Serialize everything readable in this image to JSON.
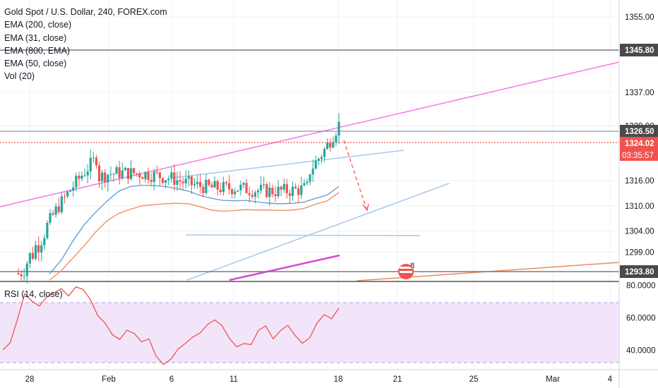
{
  "header": {
    "title": "Gold Spot / U.S. Dollar, 240, FOREX.com",
    "indicators": [
      "EMA (200, close)",
      "EMA (31, close)",
      "EMA (800, EMA)",
      "EMA (50, close)",
      "Vol (20)"
    ]
  },
  "rsi": {
    "label": "RSI (14, close)"
  },
  "badges": {
    "resistance": "1345.80",
    "top": "1326.50",
    "current": "1324.02",
    "countdown": "03:35:57",
    "support": "1293.80"
  },
  "marker": {
    "text": "8"
  },
  "colors": {
    "up": "#26a69a",
    "down": "#ef5350",
    "ema_fast": "#5b9cd6",
    "ema_slow": "#ef8a5a",
    "channel_pink": "#f279e8",
    "light_blue": "#a9c8e8",
    "rsi_fill": "#f3e5f9",
    "rsi_line": "#ef5350",
    "badge": "#4a4a4a",
    "current_badge": "#ef5350"
  },
  "chart_data": [
    {
      "type": "candlestick",
      "title": "Gold Spot / U.S. Dollar, 240, FOREX.com",
      "x_ticks": [
        "28",
        "Feb",
        "6",
        "11",
        "18",
        "21",
        "25",
        "Mar",
        "4"
      ],
      "y_ticks": [
        1355.0,
        1337.0,
        1329.0,
        1316.0,
        1310.0,
        1304.0,
        1299.0
      ],
      "price_levels": [
        1345.8,
        1326.5,
        1324.02,
        1293.8
      ],
      "ylim": [
        1292,
        1359
      ],
      "series": [
        {
          "name": "EMA (31, close)",
          "values": [
            1293.8,
            1297.0,
            1301.5,
            1305.5,
            1308.5,
            1311.2,
            1313.5,
            1314.6,
            1314.9,
            1314.8,
            1314.6,
            1314.1,
            1313.5,
            1312.5,
            1311.8,
            1311.3,
            1311.2,
            1311.3,
            1310.9,
            1310.6,
            1310.5,
            1310.6,
            1310.9,
            1311.8,
            1312.6,
            1314.6
          ]
        },
        {
          "name": "EMA (50, close)",
          "values": [
            1292.3,
            1294.5,
            1297.5,
            1300.5,
            1303.8,
            1306.5,
            1308.2,
            1309.2,
            1310.0,
            1310.3,
            1310.5,
            1310.6,
            1310.5,
            1309.8,
            1309.0,
            1308.7,
            1308.9,
            1309.1,
            1309.0,
            1309.0,
            1308.9,
            1309.0,
            1309.4,
            1310.4,
            1311.2,
            1313.2
          ]
        }
      ]
    },
    {
      "type": "line",
      "title": "RSI (14, close)",
      "y_ticks": [
        80.0,
        60.0,
        40.0
      ],
      "ylim": [
        28,
        82
      ],
      "series": [
        {
          "name": "RSI (14, close)",
          "values": [
            40.2,
            44.5,
            59.0,
            74.8,
            70.2,
            67.3,
            72.8,
            75.4,
            78.0,
            73.5,
            79.1,
            77.5,
            71.2,
            61.3,
            56.8,
            49.5,
            46.7,
            52.4,
            50.3,
            45.2,
            47.0,
            36.1,
            31.2,
            34.5,
            40.8,
            44.3,
            48.1,
            50.6,
            55.8,
            58.7,
            55.2,
            47.4,
            42.1,
            44.1,
            43.5,
            52.3,
            55.0,
            47.0,
            52.1,
            55.4,
            49.1,
            44.3,
            47.6,
            56.8,
            62.0,
            59.4,
            66.1
          ]
        }
      ]
    }
  ]
}
